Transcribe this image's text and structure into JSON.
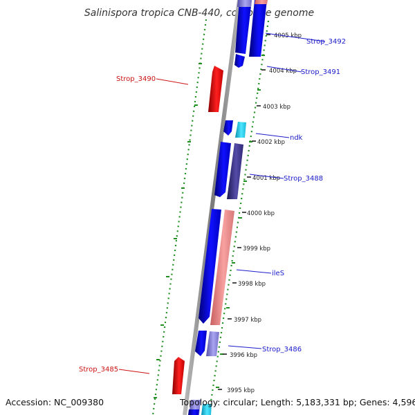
{
  "title": "Salinispora tropica CNB-440, complete genome",
  "footer": {
    "accession": "Accession: NC_009380",
    "topology": "Topology: circular; Length: 5,183,331 bp; Genes: 4,596"
  },
  "colors": {
    "forward_cds": "#0a0ae6",
    "reverse_cds_red": "#ff1a1a",
    "light_red": "#ee8a8a",
    "cyan": "#2ad4f2",
    "dark_purple": "#403a8a",
    "lavender": "#8a86dc",
    "backbone": "#8a8a8a",
    "gc_dots": "#1f8f1f",
    "label_blue": "#1a1acc",
    "label_red": "#cc1111"
  },
  "kbp_labels": [
    "4005 kbp",
    "4004 kbp",
    "4003 kbp",
    "4002 kbp",
    "4001 kbp",
    "4000 kbp",
    "3999 kbp",
    "3998 kbp",
    "3997 kbp",
    "3996 kbp",
    "3995 kbp"
  ],
  "gene_labels": {
    "strop_3492": "Strop_3492",
    "strop_3491": "Strop_3491",
    "strop_3490": "Strop_3490",
    "ndk": "ndk",
    "strop_3488": "Strop_3488",
    "iles": "ileS",
    "strop_3486": "Strop_3486",
    "strop_3485": "Strop_3485"
  }
}
